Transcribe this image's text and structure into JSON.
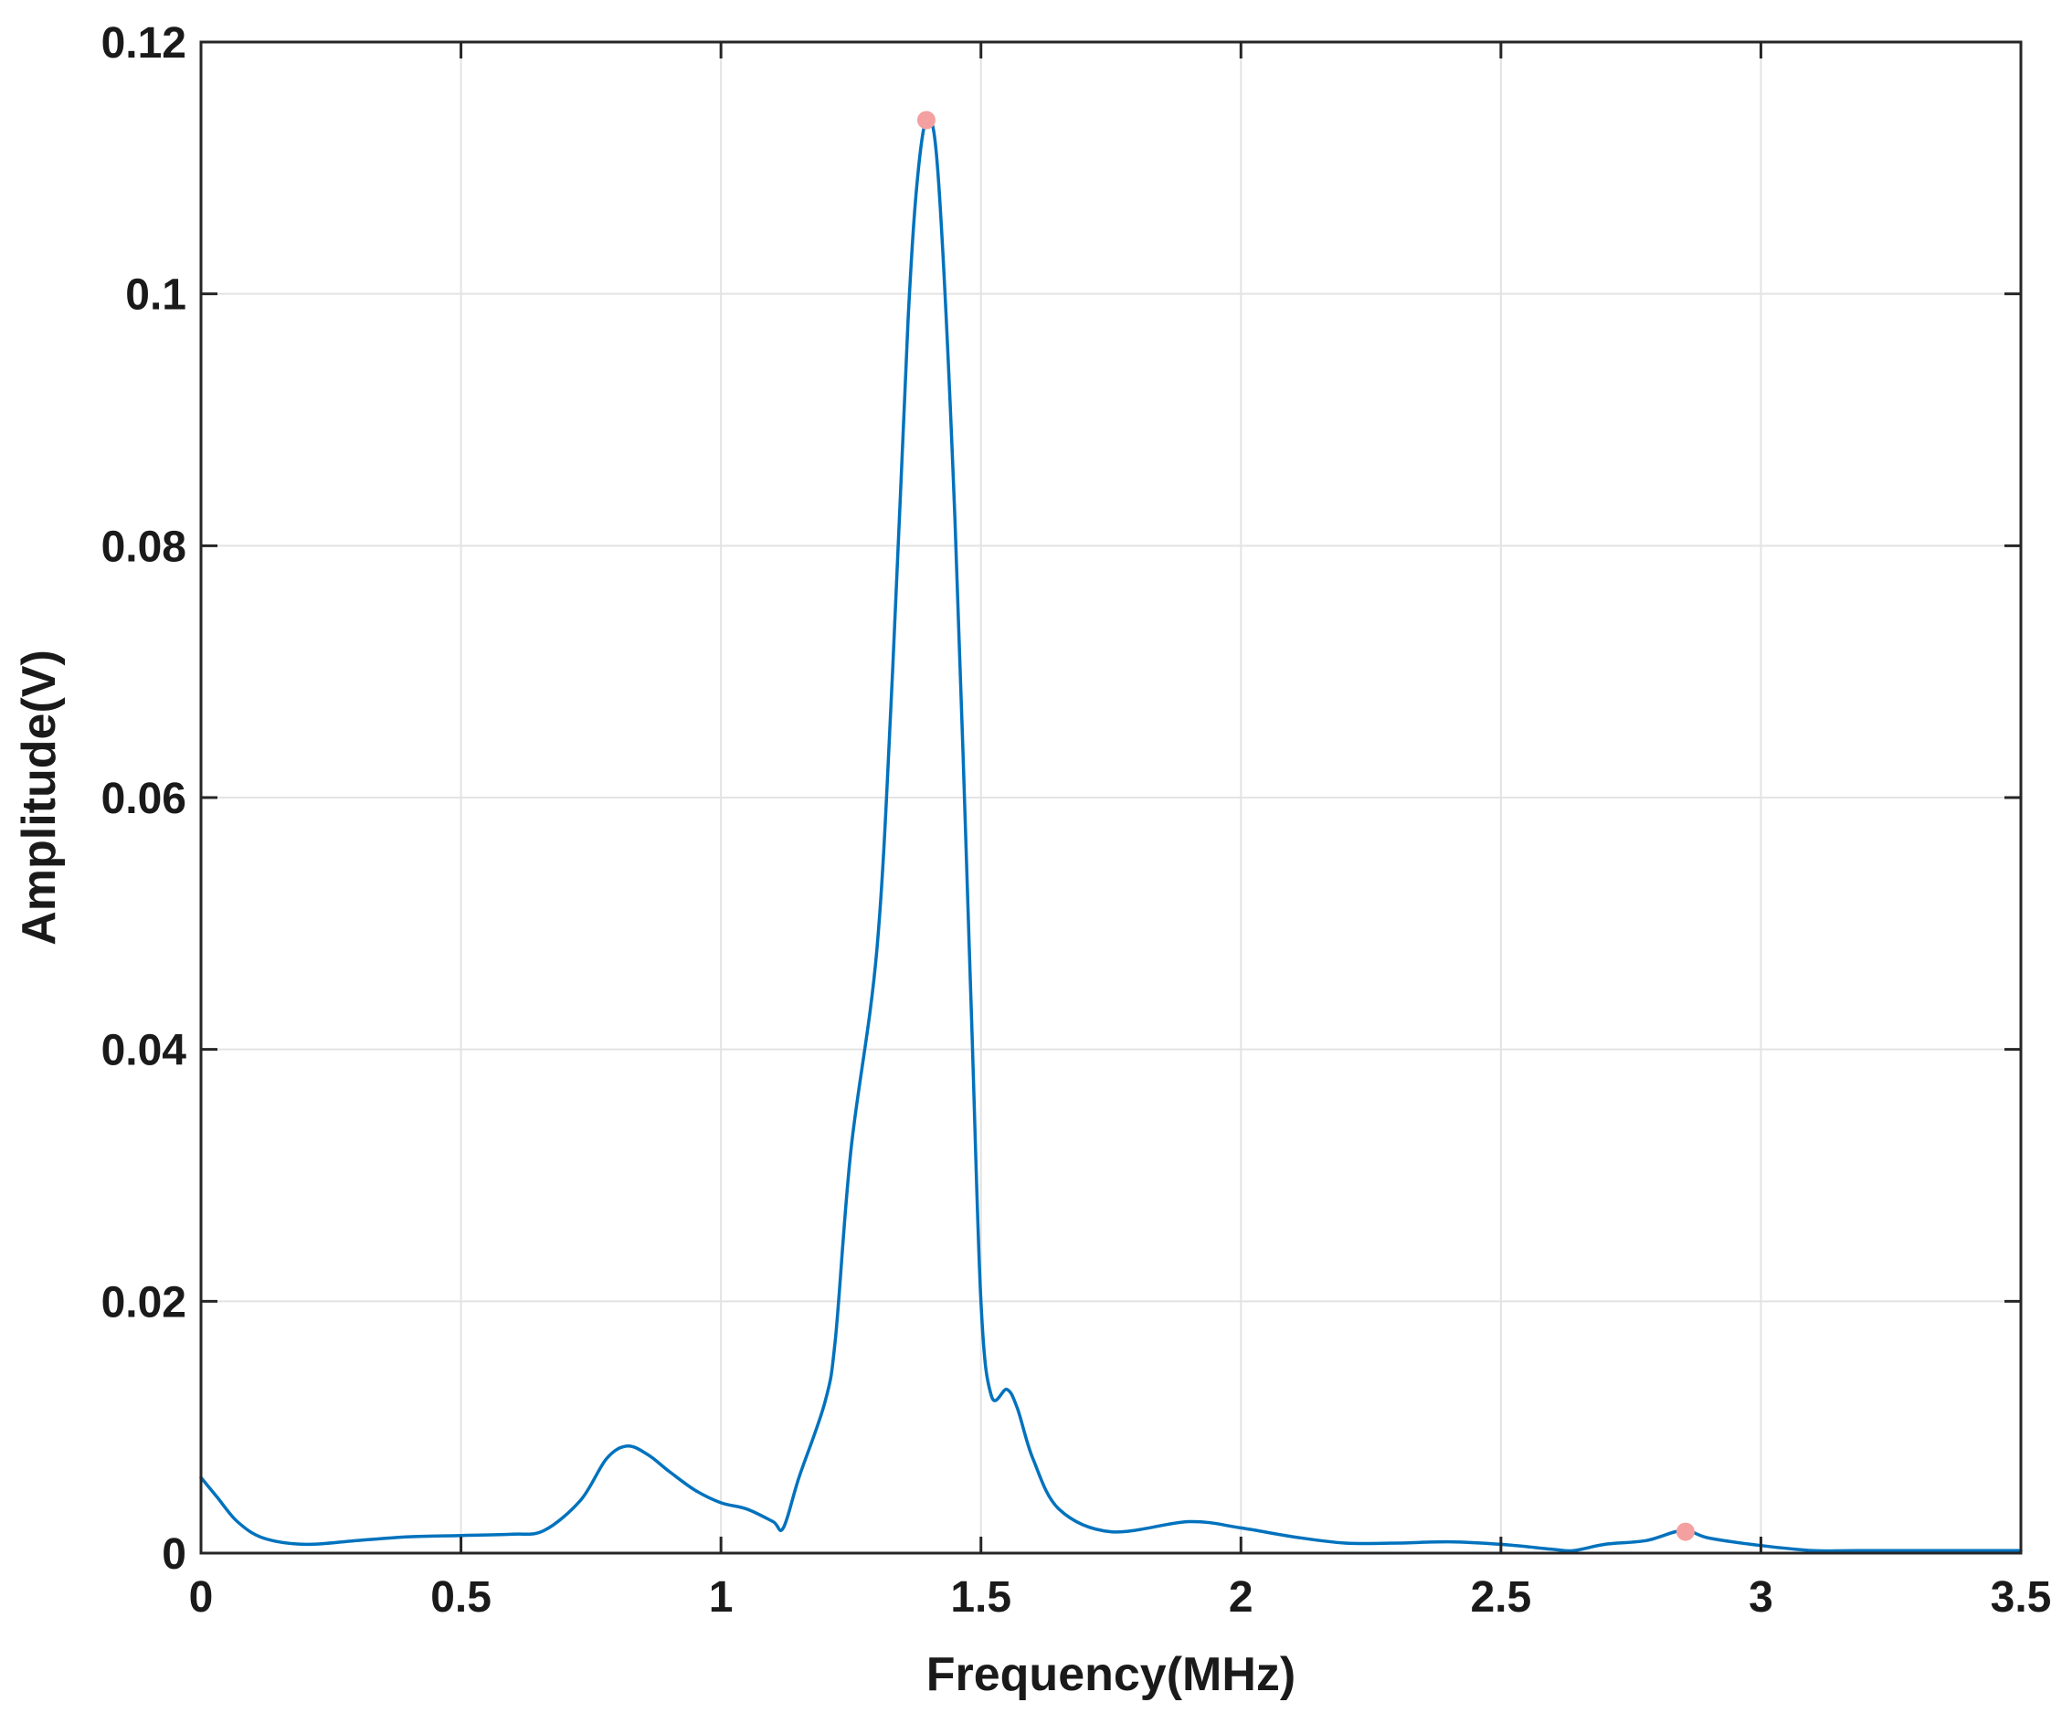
{
  "chart_data": {
    "type": "line",
    "title": "",
    "xlabel": "Frequency(MHz)",
    "ylabel": "Amplitude(V)",
    "xlim": [
      0,
      3.5
    ],
    "ylim": [
      0,
      0.12
    ],
    "grid": true,
    "x_ticks": [
      0,
      0.5,
      1,
      1.5,
      2,
      2.5,
      3,
      3.5
    ],
    "x_tick_labels": [
      "0",
      "0.5",
      "1",
      "1.5",
      "2",
      "2.5",
      "3",
      "3.5"
    ],
    "y_ticks": [
      0,
      0.02,
      0.04,
      0.06,
      0.08,
      0.1,
      0.12
    ],
    "y_tick_labels": [
      "0",
      "0.02",
      "0.04",
      "0.06",
      "0.08",
      "0.1",
      "0.12"
    ],
    "series": [
      {
        "color": "#0072BD",
        "x": [
          0,
          0.03,
          0.07,
          0.12,
          0.2,
          0.3,
          0.4,
          0.5,
          0.6,
          0.66,
          0.73,
          0.78,
          0.82,
          0.86,
          0.9,
          0.95,
          1.0,
          1.05,
          1.1,
          1.12,
          1.15,
          1.2,
          1.22,
          1.25,
          1.3,
          1.33,
          1.36,
          1.38,
          1.4,
          1.42,
          1.45,
          1.48,
          1.5,
          1.52,
          1.55,
          1.57,
          1.6,
          1.65,
          1.75,
          1.9,
          2.0,
          2.1,
          2.2,
          2.3,
          2.4,
          2.5,
          2.6,
          2.64,
          2.7,
          2.78,
          2.85,
          2.9,
          3.0,
          3.1,
          3.2,
          3.5
        ],
        "y": [
          0.006,
          0.0045,
          0.0025,
          0.0012,
          0.0007,
          0.001,
          0.0013,
          0.0014,
          0.0015,
          0.0018,
          0.0042,
          0.0075,
          0.0085,
          0.0078,
          0.0065,
          0.005,
          0.004,
          0.0035,
          0.0025,
          0.002,
          0.006,
          0.012,
          0.017,
          0.032,
          0.048,
          0.07,
          0.098,
          0.11,
          0.114,
          0.108,
          0.082,
          0.045,
          0.02,
          0.0125,
          0.013,
          0.0115,
          0.0075,
          0.0035,
          0.0017,
          0.0025,
          0.002,
          0.0013,
          0.0008,
          0.0008,
          0.0009,
          0.0007,
          0.0003,
          0.0002,
          0.0007,
          0.001,
          0.0018,
          0.0012,
          0.0006,
          0.0002,
          0.0002,
          0.0002
        ]
      }
    ],
    "markers": [
      {
        "x": 1.395,
        "y": 0.1138,
        "color": "#F4A0A0"
      },
      {
        "x": 2.855,
        "y": 0.0017,
        "color": "#F4A0A0"
      }
    ]
  }
}
